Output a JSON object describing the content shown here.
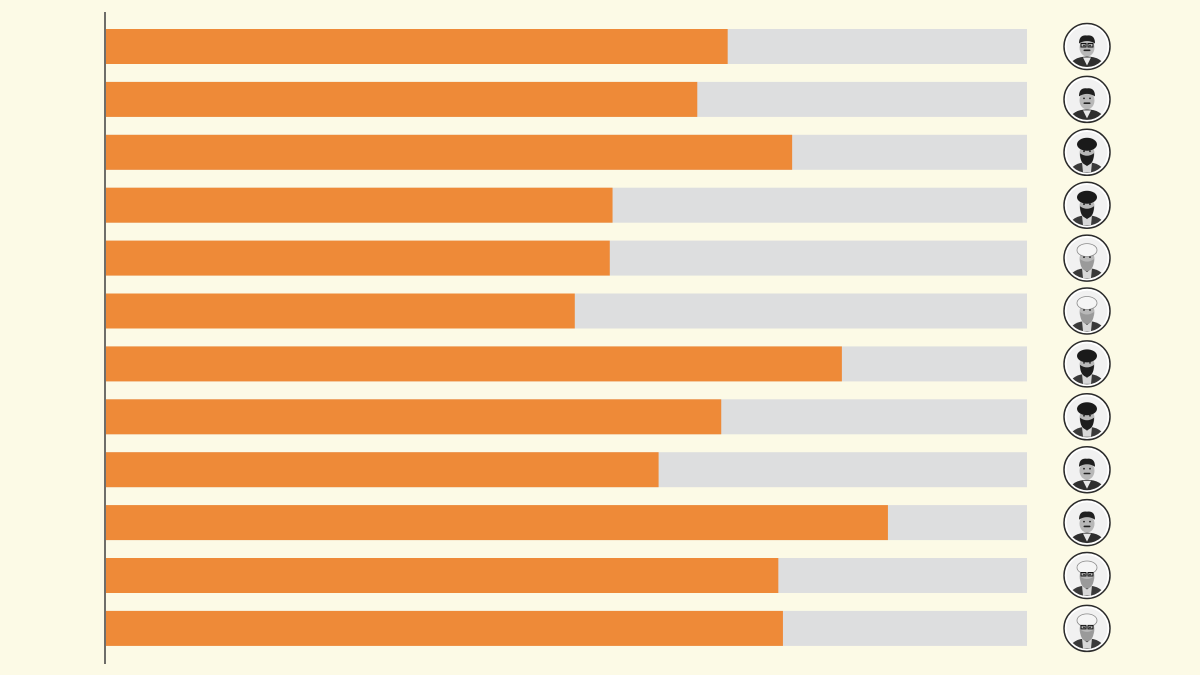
{
  "chart_data": {
    "type": "bar",
    "orientation": "horizontal",
    "stacked_with_remainder": true,
    "xlim": [
      0,
      100
    ],
    "values": [
      67.5,
      64.2,
      74.5,
      55.0,
      54.7,
      50.9,
      79.9,
      66.8,
      60.0,
      84.9,
      73.0,
      73.5
    ],
    "colors": {
      "bar": "#ee8a38",
      "remainder": "#dddedf",
      "background": "#fcfae6",
      "axis": "#4a4a4a"
    },
    "icons": [
      "portrait-man-glasses-icon",
      "portrait-man-mustache-icon",
      "portrait-cleric-black-turban-icon",
      "portrait-cleric-black-turban-icon",
      "portrait-cleric-white-turban-icon",
      "portrait-cleric-white-turban-icon",
      "portrait-cleric-black-turban-smiling-icon",
      "portrait-cleric-black-turban-smiling-icon",
      "portrait-man-suit-icon",
      "portrait-man-suit-icon",
      "portrait-cleric-white-turban-glasses-icon",
      "portrait-cleric-white-turban-glasses-icon"
    ]
  }
}
